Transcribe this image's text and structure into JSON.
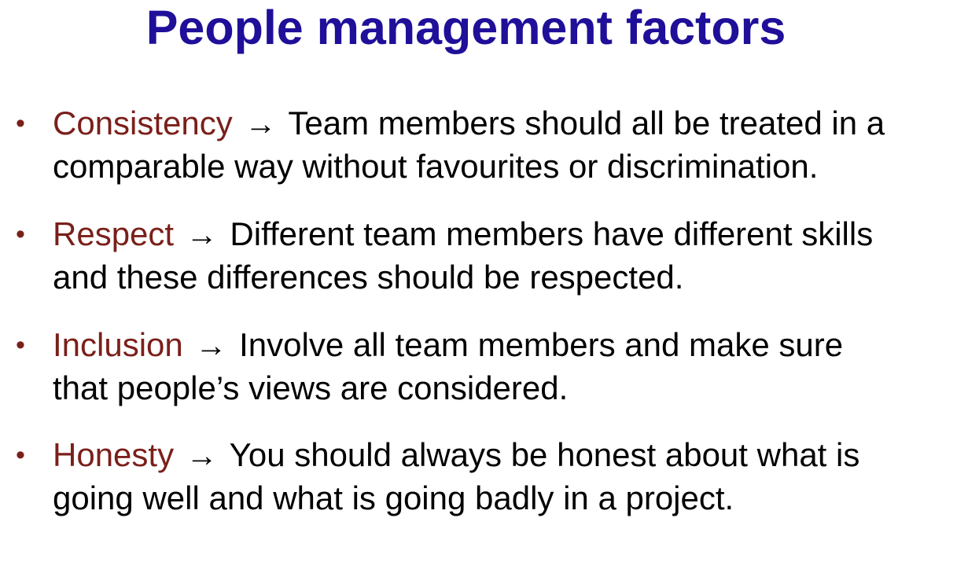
{
  "slide": {
    "title": "People management factors",
    "colors": {
      "title": "#1f0f99",
      "term": "#7a1f1a",
      "body": "#000000",
      "background": "#ffffff"
    },
    "bullet_glyph": "•",
    "arrow_glyph": "→",
    "items": [
      {
        "term": "Consistency",
        "line1": "Team members should all be treated in a",
        "line2": "comparable way without favourites or discrimination."
      },
      {
        "term": "Respect",
        "line1": "Different team members have different skills",
        "line2": "and these differences should be respected."
      },
      {
        "term": "Inclusion",
        "line1": "Involve all team members and make sure",
        "line2": "that people’s views are considered."
      },
      {
        "term": "Honesty",
        "line1": "You should always be honest about what is",
        "line2": "going well and what is going badly in a project."
      }
    ]
  }
}
